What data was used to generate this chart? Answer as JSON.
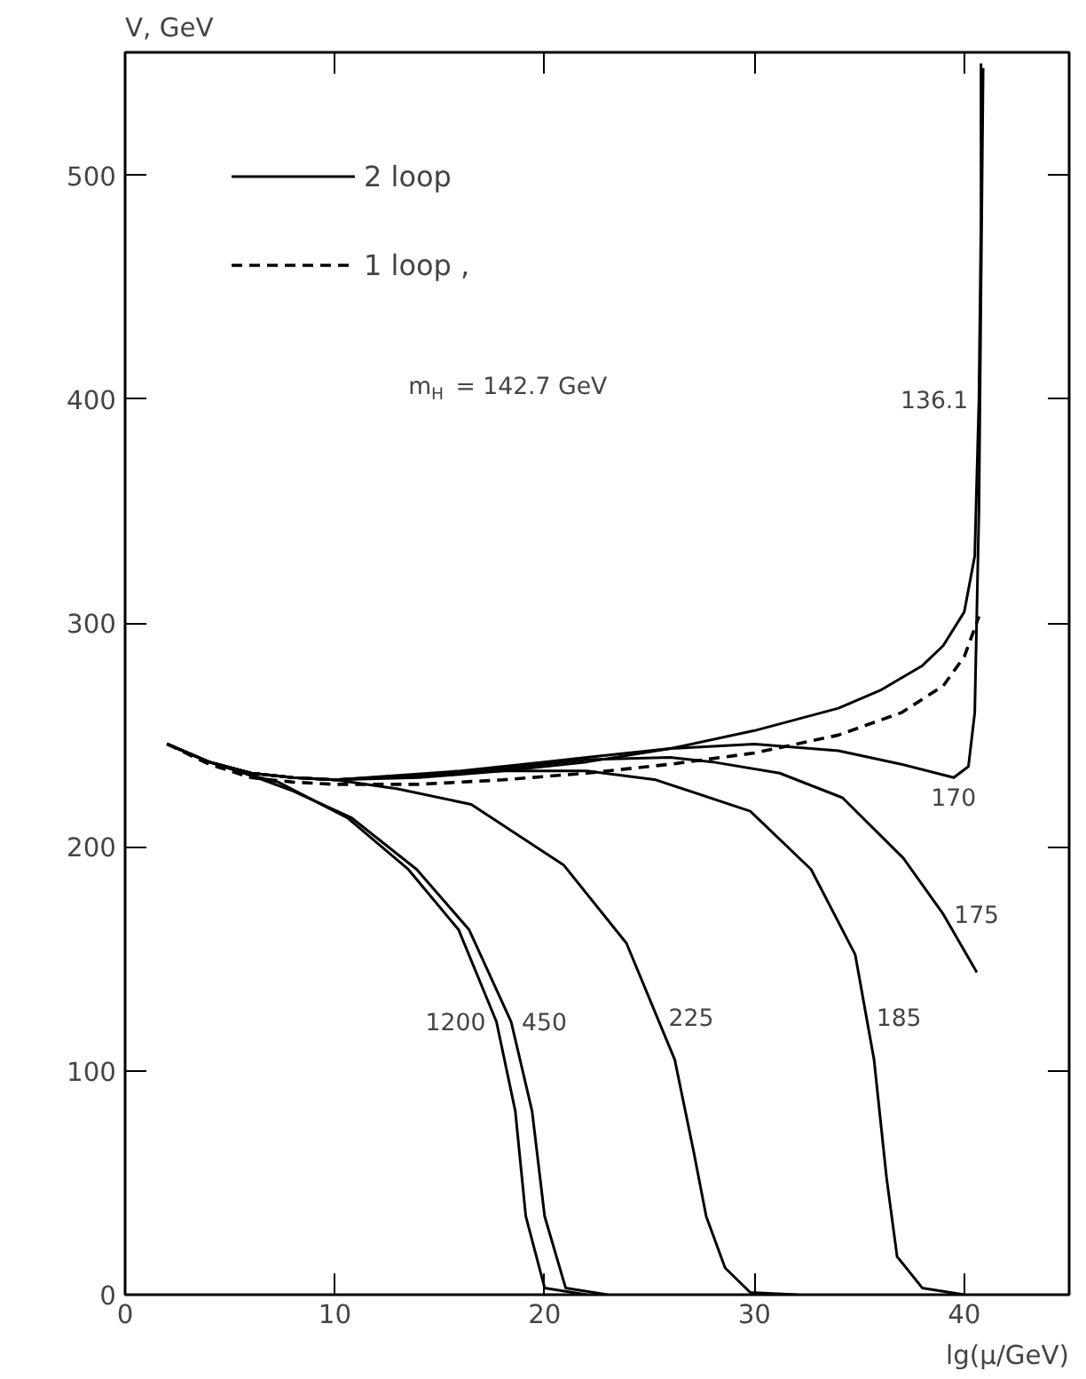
{
  "chart_data": {
    "type": "line",
    "xlabel": "lg(μ/GeV)",
    "ylabel": "V, GeV",
    "xlim": [
      0,
      45
    ],
    "ylim": [
      0,
      555
    ],
    "xticks": [
      0,
      10,
      20,
      30,
      40
    ],
    "yticks": [
      0,
      100,
      200,
      300,
      400,
      500
    ],
    "grid": false,
    "legend": "top left",
    "line_style": "solid",
    "marker": "none",
    "series": [
      {
        "name": "2 loop",
        "color": "#000000",
        "x": [
          2,
          4,
          6,
          8,
          10,
          14,
          18,
          22,
          26,
          30,
          34,
          36,
          38,
          39,
          40,
          40.5,
          40.7,
          40.8,
          40.8
        ],
        "values": [
          246,
          238,
          233,
          231,
          230,
          231,
          234,
          238,
          244,
          252,
          262,
          270,
          281,
          290,
          305,
          330,
          400,
          480,
          550
        ]
      },
      {
        "name": "1 loop ,",
        "color": "#000000",
        "line_style": "dashed",
        "x": [
          2,
          4,
          6,
          8,
          10,
          14,
          18,
          22,
          26,
          30,
          34,
          37,
          39,
          40,
          40.7
        ],
        "values": [
          246,
          237,
          231,
          229,
          228,
          228,
          230,
          233,
          237,
          242,
          250,
          260,
          272,
          285,
          303
        ]
      },
      {
        "color": "#000000",
        "x": [
          2,
          4,
          6,
          8,
          10,
          16,
          20,
          22,
          26,
          30,
          34,
          37,
          39.5,
          40.2,
          40.5,
          40.7,
          40.8,
          40.9
        ],
        "values": [
          246,
          238,
          233,
          231,
          230,
          234,
          238,
          240,
          244,
          246,
          243,
          237,
          231,
          236,
          260,
          350,
          450,
          548
        ]
      },
      {
        "color": "#000000",
        "x": [
          2,
          4,
          6,
          8,
          10,
          14,
          18,
          22,
          26,
          28,
          31.2,
          34.2,
          37.1,
          39,
          40.6
        ],
        "values": [
          246,
          238,
          233,
          231,
          230,
          232,
          235,
          239,
          240,
          238,
          233,
          222,
          195,
          170,
          144
        ]
      },
      {
        "color": "#000000",
        "x": [
          2,
          4,
          6,
          8,
          10,
          14,
          18,
          22,
          25.3,
          29.8,
          32.7,
          34.8,
          35.7,
          36.3,
          36.8,
          38,
          40
        ],
        "values": [
          246,
          238,
          233,
          231,
          230,
          232,
          234,
          234,
          230,
          216,
          190,
          152,
          105,
          52,
          17,
          3,
          0
        ]
      },
      {
        "color": "#000000",
        "x": [
          2,
          4,
          6,
          8,
          10,
          13,
          16.5,
          20.9,
          23.9,
          26.2,
          27.1,
          27.7,
          28.6,
          29.8,
          32
        ],
        "values": [
          246,
          238,
          233,
          231,
          230,
          226,
          219,
          192,
          157,
          105,
          64,
          35,
          12,
          1,
          0
        ]
      },
      {
        "color": "#000000",
        "x": [
          2,
          4,
          6,
          8,
          10.8,
          13.9,
          16.4,
          18.4,
          19.4,
          20,
          21,
          23
        ],
        "values": [
          246,
          238,
          232,
          225,
          213,
          190,
          163,
          122,
          82,
          35,
          3,
          0
        ]
      },
      {
        "color": "#000000",
        "x": [
          2,
          4,
          6,
          7.3,
          10.6,
          13.5,
          15.9,
          17.7,
          18.6,
          19.1,
          20,
          22
        ],
        "values": [
          246,
          238,
          232,
          229,
          213,
          190,
          163,
          122,
          82,
          35,
          3,
          0
        ]
      }
    ],
    "annotations": [
      "m$_{H}$ = 142.7 GeV",
      {
        "text": "136.1",
        "x": 40.7,
        "y": 400
      },
      {
        "text": "170",
        "x": 39.5,
        "y": 231
      },
      {
        "text": "175",
        "x": 39,
        "y": 170
      },
      {
        "text": "185",
        "x": 35.3,
        "y": 124
      },
      {
        "text": "225",
        "x": 25.4,
        "y": 124
      },
      {
        "text": "450",
        "x": 18.4,
        "y": 122
      },
      {
        "text": "1200",
        "x": 17.7,
        "y": 122
      }
    ]
  }
}
